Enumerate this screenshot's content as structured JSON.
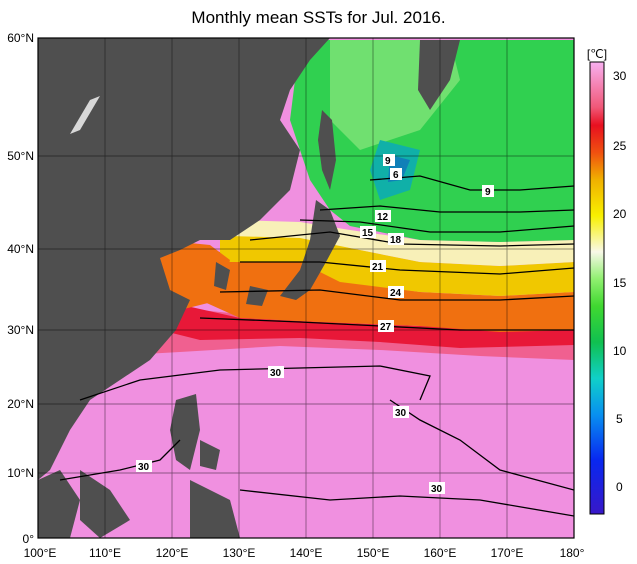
{
  "title": "Monthly mean SSTs for Jul. 2016.",
  "colorbar": {
    "unit": "[℃]",
    "ticks": [
      "30",
      "25",
      "20",
      "15",
      "10",
      "5",
      "0"
    ]
  },
  "axes": {
    "lat_labels": [
      "60°N",
      "50°N",
      "40°N",
      "30°N",
      "20°N",
      "10°N",
      "0°"
    ],
    "lon_labels": [
      "100°E",
      "110°E",
      "120°E",
      "130°E",
      "140°E",
      "150°E",
      "160°E",
      "170°E",
      "180°"
    ]
  },
  "contour_labels": [
    "9",
    "6",
    "9",
    "12",
    "15",
    "18",
    "21",
    "24",
    "27",
    "30",
    "30",
    "30",
    "30"
  ],
  "colors": {
    "land": "#4f4f4f",
    "sst_30": "#f08ae0",
    "sst_27": "#e8184a",
    "sst_24": "#f06a10",
    "sst_21": "#f0d000",
    "sst_18": "#f8f0c0",
    "sst_12": "#20d040",
    "sst_6": "#18a8b8"
  }
}
